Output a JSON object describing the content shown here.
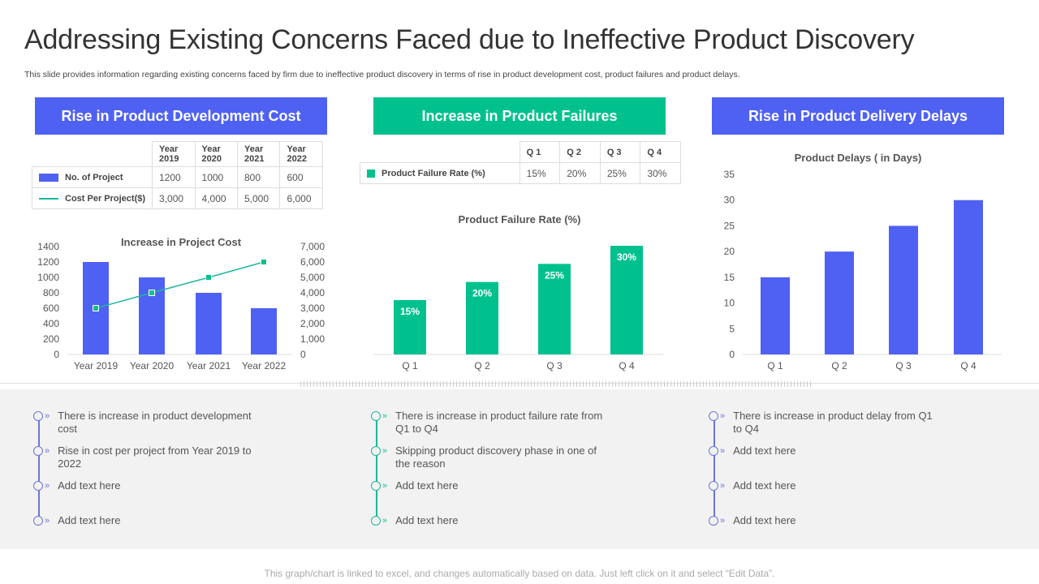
{
  "title": "Addressing Existing Concerns Faced due to Ineffective Product Discovery",
  "subtitle": "This slide provides information regarding existing concerns faced by firm due to ineffective product discovery in terms of rise in product development cost, product failures and product delays.",
  "colors": {
    "blue": "#4f61f2",
    "green": "#00c18d",
    "teal": "#1cb89c"
  },
  "panels": [
    {
      "header": "Rise in Product Development Cost",
      "table": {
        "columns": [
          "Year 2019",
          "Year 2020",
          "Year 2021",
          "Year 2022"
        ],
        "rows": [
          {
            "label": "No. of Project",
            "values": [
              "1200",
              "1000",
              "800",
              "600"
            ]
          },
          {
            "label": "Cost Per Project($)",
            "values": [
              "3,000",
              "4,000",
              "5,000",
              "6,000"
            ]
          }
        ]
      },
      "points": [
        "There is increase in product development  cost",
        "Rise in cost per project from Year 2019 to 2022",
        "Add text here",
        "Add text here"
      ]
    },
    {
      "header": "Increase in Product Failures",
      "table": {
        "columns": [
          "Q 1",
          "Q 2",
          "Q 3",
          "Q 4"
        ],
        "rows": [
          {
            "label": "Product Failure Rate (%)",
            "values": [
              "15%",
              "20%",
              "25%",
              "30%"
            ]
          }
        ]
      },
      "points": [
        "There is increase in product failure rate from Q1 to Q4",
        "Skipping product discovery phase in one of the reason",
        "Add text here",
        "Add text here"
      ]
    },
    {
      "header": "Rise in Product Delivery Delays",
      "points": [
        "There is increase in product delay from Q1 to Q4",
        "Add text here",
        "Add text here",
        "Add text here"
      ]
    }
  ],
  "chart_data": [
    {
      "type": "bar+line",
      "title": "Increase in Project Cost",
      "categories": [
        "Year 2019",
        "Year 2020",
        "Year 2021",
        "Year 2022"
      ],
      "series": [
        {
          "name": "No. of Project",
          "type": "bar",
          "axis": "left",
          "values": [
            1200,
            1000,
            800,
            600
          ]
        },
        {
          "name": "Cost Per Project($)",
          "type": "line",
          "axis": "right",
          "values": [
            3000,
            4000,
            5000,
            6000
          ]
        }
      ],
      "ylim": [
        0,
        1400
      ],
      "yticks": [
        "0",
        "200",
        "400",
        "600",
        "800",
        "1000",
        "1200",
        "1400"
      ],
      "y2lim": [
        0,
        7000
      ],
      "y2ticks": [
        "0",
        "1,000",
        "2,000",
        "3,000",
        "4,000",
        "5,000",
        "6,000",
        "7,000"
      ]
    },
    {
      "type": "bar",
      "title": "Product Failure Rate (%)",
      "categories": [
        "Q 1",
        "Q 2",
        "Q 3",
        "Q 4"
      ],
      "values": [
        15,
        20,
        25,
        30
      ],
      "data_labels": [
        "15%",
        "20%",
        "25%",
        "30%"
      ],
      "ylim": [
        0,
        30
      ]
    },
    {
      "type": "bar",
      "title": "Product Delays ( in Days)",
      "categories": [
        "Q 1",
        "Q 2",
        "Q 3",
        "Q 4"
      ],
      "values": [
        15,
        20,
        25,
        30
      ],
      "ylim": [
        0,
        35
      ],
      "yticks": [
        "0",
        "5",
        "10",
        "15",
        "20",
        "25",
        "30",
        "35"
      ]
    }
  ],
  "footer": "This graph/chart is linked to excel, and changes automatically based on data. Just left click on it and select “Edit Data”."
}
